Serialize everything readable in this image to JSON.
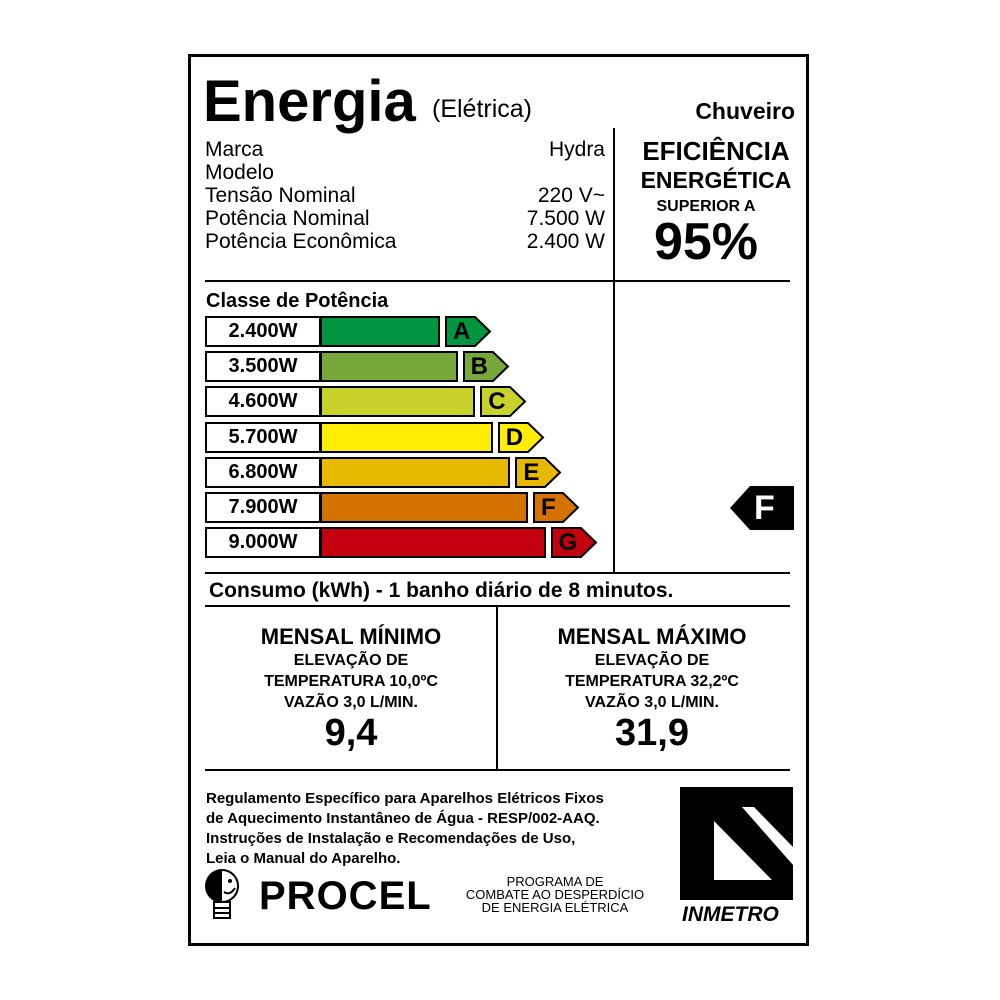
{
  "header": {
    "title": "Energia",
    "subtitle": "(Elétrica)",
    "product": "Chuveiro"
  },
  "specs": [
    {
      "label": "Marca",
      "value": "Hydra"
    },
    {
      "label": "Modelo",
      "value": ""
    },
    {
      "label": "Tensão Nominal",
      "value": "220 V~"
    },
    {
      "label": "Potência Nominal",
      "value": "7.500 W"
    },
    {
      "label": "Potência Econômica",
      "value": "2.400 W"
    }
  ],
  "efficiency": {
    "line1": "EFICIÊNCIA",
    "line2": "ENERGÉTICA",
    "line3": "SUPERIOR A",
    "value": "95%"
  },
  "classes": {
    "title": "Classe de Potência",
    "rating": "F",
    "items": [
      {
        "power": "2.400W",
        "letter": "A",
        "color": "#00963f"
      },
      {
        "power": "3.500W",
        "letter": "B",
        "color": "#76a93a"
      },
      {
        "power": "4.600W",
        "letter": "C",
        "color": "#c9d22a"
      },
      {
        "power": "5.700W",
        "letter": "D",
        "color": "#ffed00"
      },
      {
        "power": "6.800W",
        "letter": "E",
        "color": "#e6b800"
      },
      {
        "power": "7.900W",
        "letter": "F",
        "color": "#d57300"
      },
      {
        "power": "9.000W",
        "letter": "G",
        "color": "#c4000f"
      }
    ]
  },
  "consumption": {
    "title": "Consumo (kWh) - 1 banho diário de 8 minutos.",
    "min": {
      "title": "MENSAL MÍNIMO",
      "l1": "ELEVAÇÃO DE",
      "l2": "TEMPERATURA 10,0ºC",
      "l3": "VAZÃO 3,0 L/MIN.",
      "value": "9,4"
    },
    "max": {
      "title": "MENSAL MÁXIMO",
      "l1": "ELEVAÇÃO DE",
      "l2": "TEMPERATURA 32,2ºC",
      "l3": "VAZÃO 3,0 L/MIN.",
      "value": "31,9"
    }
  },
  "footer": {
    "lines": [
      "Regulamento Específico para Aparelhos Elétricos Fixos",
      "de Aquecimento Instantâneo de Água - RESP/002-AAQ.",
      "Instruções de Instalação e Recomendações de Uso,",
      "Leia o Manual do Aparelho."
    ],
    "procel": "PROCEL",
    "procel_tag": [
      "PROGRAMA DE",
      "COMBATE AO DESPERDÍCIO",
      "DE ENERGIA ELÉTRICA"
    ],
    "inmetro": "INMETRO"
  }
}
